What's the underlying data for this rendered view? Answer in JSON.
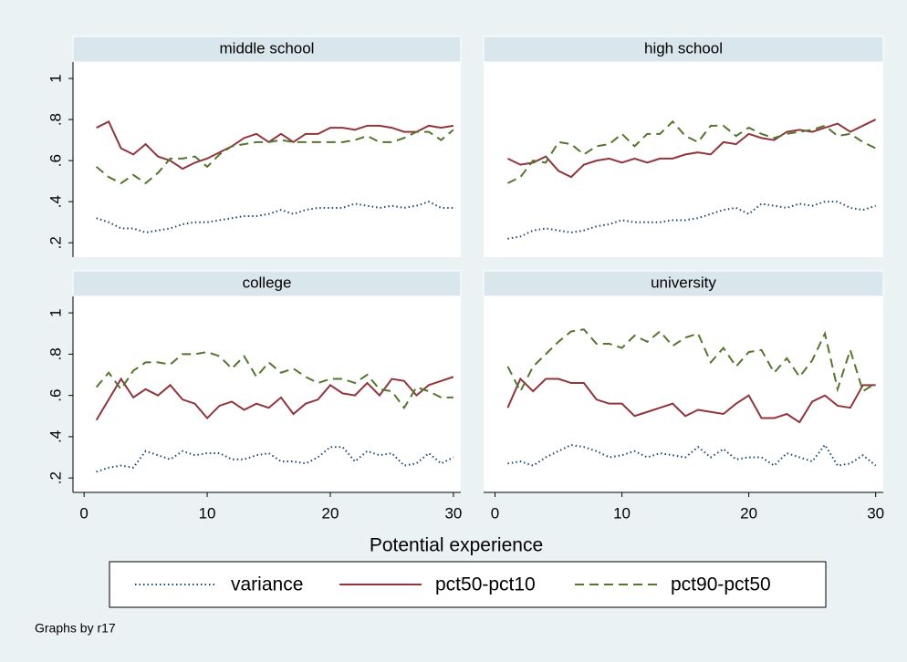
{
  "chart_data": [
    {
      "type": "line",
      "title": "middle school",
      "x": [
        1,
        2,
        3,
        4,
        5,
        6,
        7,
        8,
        9,
        10,
        11,
        12,
        13,
        14,
        15,
        16,
        17,
        18,
        19,
        20,
        21,
        22,
        23,
        24,
        25,
        26,
        27,
        28,
        29,
        30
      ],
      "xlim": [
        -0.9,
        30.6
      ],
      "ylim": [
        0.13,
        1.08
      ],
      "xticks": [
        0,
        10,
        20,
        30
      ],
      "yticks": [
        {
          "value": 0.2,
          "label": ".2"
        },
        {
          "value": 0.4,
          "label": ".4"
        },
        {
          "value": 0.6,
          "label": ".6"
        },
        {
          "value": 0.8,
          "label": ".8"
        },
        1
      ],
      "series": [
        {
          "name": "variance",
          "color": "#1a476f",
          "dash": "dot",
          "values": [
            0.32,
            0.3,
            0.27,
            0.27,
            0.25,
            0.26,
            0.27,
            0.29,
            0.3,
            0.3,
            0.31,
            0.32,
            0.33,
            0.33,
            0.34,
            0.36,
            0.34,
            0.36,
            0.37,
            0.37,
            0.37,
            0.39,
            0.38,
            0.37,
            0.38,
            0.37,
            0.38,
            0.4,
            0.37,
            0.37
          ]
        },
        {
          "name": "pct50-pct10",
          "color": "#90353b",
          "dash": "solid",
          "values": [
            0.76,
            0.79,
            0.66,
            0.63,
            0.68,
            0.62,
            0.6,
            0.56,
            0.59,
            0.61,
            0.64,
            0.67,
            0.71,
            0.73,
            0.69,
            0.73,
            0.69,
            0.73,
            0.73,
            0.76,
            0.76,
            0.75,
            0.77,
            0.77,
            0.76,
            0.74,
            0.74,
            0.77,
            0.76,
            0.77
          ]
        },
        {
          "name": "pct90-pct50",
          "color": "#55752f",
          "dash": "dash",
          "values": [
            0.57,
            0.52,
            0.49,
            0.53,
            0.49,
            0.54,
            0.61,
            0.61,
            0.62,
            0.57,
            0.63,
            0.67,
            0.68,
            0.69,
            0.69,
            0.7,
            0.69,
            0.69,
            0.69,
            0.69,
            0.69,
            0.7,
            0.72,
            0.69,
            0.69,
            0.71,
            0.74,
            0.74,
            0.7,
            0.75
          ]
        }
      ]
    },
    {
      "type": "line",
      "title": "high school",
      "x": [
        1,
        2,
        3,
        4,
        5,
        6,
        7,
        8,
        9,
        10,
        11,
        12,
        13,
        14,
        15,
        16,
        17,
        18,
        19,
        20,
        21,
        22,
        23,
        24,
        25,
        26,
        27,
        28,
        29,
        30
      ],
      "xlim": [
        -0.9,
        30.6
      ],
      "ylim": [
        0.13,
        1.08
      ],
      "xticks": [
        0,
        10,
        20,
        30
      ],
      "yticks": [
        {
          "value": 0.2,
          "label": ".2"
        },
        {
          "value": 0.4,
          "label": ".4"
        },
        {
          "value": 0.6,
          "label": ".6"
        },
        {
          "value": 0.8,
          "label": ".8"
        },
        1
      ],
      "series": [
        {
          "name": "variance",
          "color": "#1a476f",
          "dash": "dot",
          "values": [
            0.22,
            0.23,
            0.26,
            0.27,
            0.26,
            0.25,
            0.26,
            0.28,
            0.29,
            0.31,
            0.3,
            0.3,
            0.3,
            0.31,
            0.31,
            0.32,
            0.34,
            0.36,
            0.37,
            0.34,
            0.39,
            0.38,
            0.37,
            0.39,
            0.38,
            0.4,
            0.4,
            0.37,
            0.36,
            0.38
          ]
        },
        {
          "name": "pct50-pct10",
          "color": "#90353b",
          "dash": "solid",
          "values": [
            0.61,
            0.58,
            0.59,
            0.62,
            0.55,
            0.52,
            0.58,
            0.6,
            0.61,
            0.59,
            0.61,
            0.59,
            0.61,
            0.61,
            0.63,
            0.64,
            0.63,
            0.69,
            0.68,
            0.73,
            0.71,
            0.7,
            0.74,
            0.75,
            0.74,
            0.76,
            0.78,
            0.74,
            0.77,
            0.8
          ]
        },
        {
          "name": "pct90-pct50",
          "color": "#55752f",
          "dash": "dash",
          "values": [
            0.49,
            0.52,
            0.6,
            0.59,
            0.69,
            0.68,
            0.63,
            0.67,
            0.68,
            0.73,
            0.67,
            0.73,
            0.73,
            0.79,
            0.72,
            0.69,
            0.77,
            0.77,
            0.72,
            0.76,
            0.73,
            0.71,
            0.73,
            0.74,
            0.75,
            0.77,
            0.72,
            0.73,
            0.69,
            0.66
          ]
        }
      ]
    },
    {
      "type": "line",
      "title": "college",
      "x": [
        1,
        2,
        3,
        4,
        5,
        6,
        7,
        8,
        9,
        10,
        11,
        12,
        13,
        14,
        15,
        16,
        17,
        18,
        19,
        20,
        21,
        22,
        23,
        24,
        25,
        26,
        27,
        28,
        29,
        30
      ],
      "xlim": [
        -0.9,
        30.6
      ],
      "ylim": [
        0.13,
        1.08
      ],
      "xticks": [
        0,
        10,
        20,
        30
      ],
      "yticks": [
        {
          "value": 0.2,
          "label": ".2"
        },
        {
          "value": 0.4,
          "label": ".4"
        },
        {
          "value": 0.6,
          "label": ".6"
        },
        {
          "value": 0.8,
          "label": ".8"
        },
        1
      ],
      "series": [
        {
          "name": "variance",
          "color": "#1a476f",
          "dash": "dot",
          "values": [
            0.23,
            0.25,
            0.26,
            0.25,
            0.33,
            0.31,
            0.29,
            0.33,
            0.31,
            0.32,
            0.32,
            0.29,
            0.29,
            0.31,
            0.32,
            0.28,
            0.28,
            0.27,
            0.3,
            0.35,
            0.35,
            0.28,
            0.33,
            0.31,
            0.32,
            0.26,
            0.27,
            0.32,
            0.27,
            0.3
          ]
        },
        {
          "name": "pct50-pct10",
          "color": "#90353b",
          "dash": "solid",
          "values": [
            0.48,
            0.58,
            0.68,
            0.59,
            0.63,
            0.6,
            0.65,
            0.58,
            0.56,
            0.49,
            0.55,
            0.57,
            0.53,
            0.56,
            0.54,
            0.59,
            0.51,
            0.56,
            0.58,
            0.65,
            0.61,
            0.6,
            0.66,
            0.6,
            0.68,
            0.67,
            0.6,
            0.65,
            0.67,
            0.69
          ]
        },
        {
          "name": "pct90-pct50",
          "color": "#55752f",
          "dash": "dash",
          "values": [
            0.64,
            0.71,
            0.63,
            0.72,
            0.76,
            0.76,
            0.75,
            0.8,
            0.8,
            0.81,
            0.79,
            0.73,
            0.79,
            0.69,
            0.76,
            0.71,
            0.73,
            0.69,
            0.66,
            0.68,
            0.68,
            0.66,
            0.7,
            0.63,
            0.62,
            0.54,
            0.64,
            0.62,
            0.59,
            0.59
          ]
        }
      ]
    },
    {
      "type": "line",
      "title": "university",
      "x": [
        1,
        2,
        3,
        4,
        5,
        6,
        7,
        8,
        9,
        10,
        11,
        12,
        13,
        14,
        15,
        16,
        17,
        18,
        19,
        20,
        21,
        22,
        23,
        24,
        25,
        26,
        27,
        28,
        29,
        30
      ],
      "xlim": [
        -0.9,
        30.6
      ],
      "ylim": [
        0.13,
        1.08
      ],
      "xticks": [
        0,
        10,
        20,
        30
      ],
      "yticks": [
        {
          "value": 0.2,
          "label": ".2"
        },
        {
          "value": 0.4,
          "label": ".4"
        },
        {
          "value": 0.6,
          "label": ".6"
        },
        {
          "value": 0.8,
          "label": ".8"
        },
        1
      ],
      "series": [
        {
          "name": "variance",
          "color": "#1a476f",
          "dash": "dot",
          "values": [
            0.27,
            0.28,
            0.26,
            0.3,
            0.33,
            0.36,
            0.35,
            0.33,
            0.3,
            0.31,
            0.33,
            0.3,
            0.32,
            0.31,
            0.3,
            0.35,
            0.3,
            0.34,
            0.29,
            0.3,
            0.3,
            0.26,
            0.32,
            0.3,
            0.28,
            0.36,
            0.26,
            0.27,
            0.31,
            0.26
          ]
        },
        {
          "name": "pct50-pct10",
          "color": "#90353b",
          "dash": "solid",
          "values": [
            0.54,
            0.68,
            0.62,
            0.68,
            0.68,
            0.66,
            0.66,
            0.58,
            0.56,
            0.56,
            0.5,
            0.52,
            0.54,
            0.56,
            0.5,
            0.53,
            0.52,
            0.51,
            0.56,
            0.6,
            0.49,
            0.49,
            0.51,
            0.47,
            0.57,
            0.6,
            0.55,
            0.54,
            0.65,
            0.65
          ]
        },
        {
          "name": "pct90-pct50",
          "color": "#55752f",
          "dash": "dash",
          "values": [
            0.74,
            0.62,
            0.74,
            0.8,
            0.86,
            0.91,
            0.92,
            0.85,
            0.85,
            0.83,
            0.89,
            0.86,
            0.91,
            0.84,
            0.88,
            0.9,
            0.76,
            0.83,
            0.74,
            0.81,
            0.82,
            0.71,
            0.78,
            0.69,
            0.77,
            0.9,
            0.63,
            0.82,
            0.62,
            0.66
          ]
        }
      ]
    }
  ],
  "xlabel": "Potential experience",
  "note": "Graphs by r17"
}
